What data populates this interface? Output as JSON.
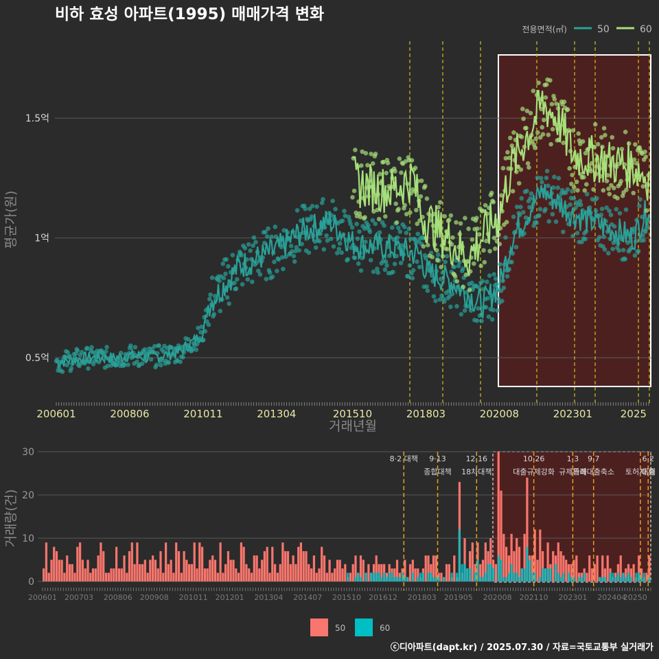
{
  "title": "비하 효성 아파트(1995) 매매가격 변화",
  "legend_title": "전용면적(㎡)",
  "legend_items": [
    {
      "label": "50",
      "color": "#2aa198"
    },
    {
      "label": "60",
      "color": "#a6e07a"
    }
  ],
  "bottom_legend": [
    {
      "label": "50",
      "color": "#f8766d"
    },
    {
      "label": "60",
      "color": "#00bfc4"
    }
  ],
  "credit": "ⓒ디아파트(dapt.kr) / 2025.07.30 / 자료=국토교통부 실거래가",
  "chart_data": [
    {
      "type": "line",
      "ylabel": "평균가(원)",
      "xlabel": "거래년월",
      "yticks": [
        {
          "value": 0.5,
          "label": "0.5억"
        },
        {
          "value": 1.0,
          "label": "1억"
        },
        {
          "value": 1.5,
          "label": "1.5억"
        }
      ],
      "xticks": [
        "200601",
        "200806",
        "201011",
        "201304",
        "201510",
        "201803",
        "202008",
        "202301",
        "2025"
      ],
      "ylim": [
        0.23,
        1.72
      ],
      "series": [
        {
          "name": "50",
          "color": "#2aa198",
          "x": [
            "200601",
            "200701",
            "200801",
            "200806",
            "200901",
            "201001",
            "201011",
            "201101",
            "201201",
            "201304",
            "201401",
            "201501",
            "201510",
            "201601",
            "201701",
            "201801",
            "201803",
            "201901",
            "202001",
            "202008",
            "202101",
            "202201",
            "202301",
            "202401",
            "202501",
            "202507"
          ],
          "y": [
            0.48,
            0.5,
            0.5,
            0.51,
            0.5,
            0.52,
            0.6,
            0.72,
            0.88,
            0.95,
            1.02,
            1.07,
            0.98,
            0.97,
            0.96,
            0.93,
            0.86,
            0.82,
            0.72,
            0.8,
            1.0,
            1.2,
            1.1,
            1.05,
            1.0,
            1.13
          ]
        },
        {
          "name": "60",
          "color": "#a6e07a",
          "x": [
            "201510",
            "201601",
            "201701",
            "201710",
            "201801",
            "201901",
            "201908",
            "202001",
            "202008",
            "202101",
            "202201",
            "202207",
            "202301",
            "202401",
            "202501",
            "202507"
          ],
          "y": [
            1.25,
            1.22,
            1.2,
            1.25,
            1.1,
            0.98,
            0.92,
            1.0,
            1.1,
            1.3,
            1.56,
            1.5,
            1.35,
            1.32,
            1.3,
            1.25
          ]
        }
      ]
    },
    {
      "type": "bar",
      "ylabel": "거래량(건)",
      "yticks": [
        0,
        10,
        20,
        30
      ],
      "xticks": [
        "200601",
        "200703",
        "200806",
        "200908",
        "201011",
        "201201",
        "201304",
        "201407",
        "201510",
        "201612",
        "201803",
        "201905",
        "202008",
        "202110",
        "202301",
        "202404",
        "20250"
      ],
      "series": [
        {
          "name": "50",
          "color": "#f8766d"
        },
        {
          "name": "60",
          "color": "#00bfc4"
        }
      ],
      "annotations": [
        {
          "date": "201708",
          "line1": "8·2 대책",
          "line2": ""
        },
        {
          "date": "201809",
          "line1": "9·13",
          "line2": "종합대책"
        },
        {
          "date": "201912",
          "line1": "12·16",
          "line2": "18차대책"
        },
        {
          "date": "202110",
          "line1": "10·26",
          "line2": "대출규제강화"
        },
        {
          "date": "202301",
          "line1": "1·3",
          "line2": "규제완화"
        },
        {
          "date": "202309",
          "line1": "9·7",
          "line2": "특례대출축소"
        },
        {
          "date": "202503",
          "line1": "",
          "line2": "토허제 해"
        },
        {
          "date": "202506",
          "line1": "6·2",
          "line2": "대출"
        }
      ]
    }
  ]
}
